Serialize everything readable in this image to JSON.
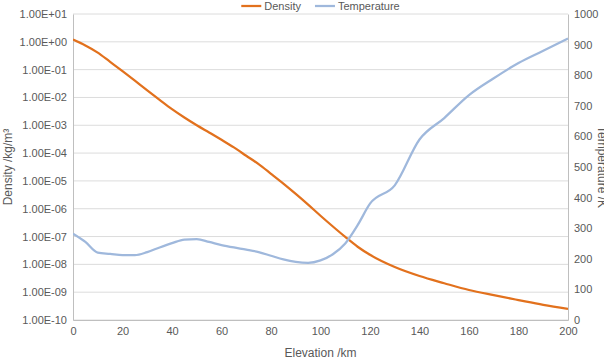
{
  "chart_data": {
    "type": "line",
    "xlabel": "Elevation /km",
    "ylabel": "Density /kg/m³",
    "y2label": "Temperature /K",
    "x": [
      0,
      5,
      10,
      15,
      20,
      25,
      30,
      35,
      40,
      45,
      50,
      55,
      60,
      65,
      70,
      75,
      80,
      85,
      90,
      95,
      100,
      105,
      110,
      115,
      120,
      130,
      140,
      150,
      160,
      170,
      180,
      190,
      200
    ],
    "series": [
      {
        "name": "Density",
        "color": "#e2711d",
        "values": [
          1.2,
          0.74,
          0.41,
          0.19,
          0.088,
          0.04,
          0.018,
          0.0082,
          0.0038,
          0.0019,
          0.001,
          0.00055,
          0.0003,
          0.00016,
          8e-05,
          4e-05,
          1.8e-05,
          8e-06,
          3.4e-06,
          1.4e-06,
          5.6e-07,
          2.3e-07,
          9.7e-08,
          4.3e-08,
          2.2e-08,
          8e-09,
          3.8e-09,
          2.1e-09,
          1.2e-09,
          7.8e-10,
          5.2e-10,
          3.5e-10,
          2.5e-10
        ]
      },
      {
        "name": "Temperature",
        "color": "#9fb8dc",
        "axis": "y2",
        "values": [
          282,
          255,
          220,
          216,
          212,
          212,
          222,
          237,
          251,
          263,
          264,
          255,
          245,
          237,
          230,
          222,
          210,
          198,
          190,
          187,
          195,
          215,
          250,
          310,
          380,
          440,
          590,
          660,
          735,
          790,
          840,
          880,
          920
        ]
      }
    ],
    "xlim": [
      0,
      200
    ],
    "xticks": [
      0,
      20,
      40,
      60,
      80,
      100,
      120,
      140,
      160,
      180,
      200
    ],
    "ylim": [
      1e-10,
      10
    ],
    "yticks": [
      {
        "value": 1e-10,
        "label": "1.00E-10"
      },
      {
        "value": 1e-09,
        "label": "1.00E-09"
      },
      {
        "value": 1e-08,
        "label": "1.00E-08"
      },
      {
        "value": 1e-07,
        "label": "1.00E-07"
      },
      {
        "value": 1e-06,
        "label": "1.00E-06"
      },
      {
        "value": 1e-05,
        "label": "1.00E-05"
      },
      {
        "value": 0.0001,
        "label": "1.00E-04"
      },
      {
        "value": 0.001,
        "label": "1.00E-03"
      },
      {
        "value": 0.01,
        "label": "1.00E-02"
      },
      {
        "value": 0.1,
        "label": "1.00E-01"
      },
      {
        "value": 1,
        "label": "1.00E+00"
      },
      {
        "value": 10,
        "label": "1.00E+01"
      }
    ],
    "y2lim": [
      0,
      1000
    ],
    "y2ticks": [
      0,
      100,
      200,
      300,
      400,
      500,
      600,
      700,
      800,
      900,
      1000
    ],
    "log": "y",
    "grid": true,
    "legend": "top"
  }
}
